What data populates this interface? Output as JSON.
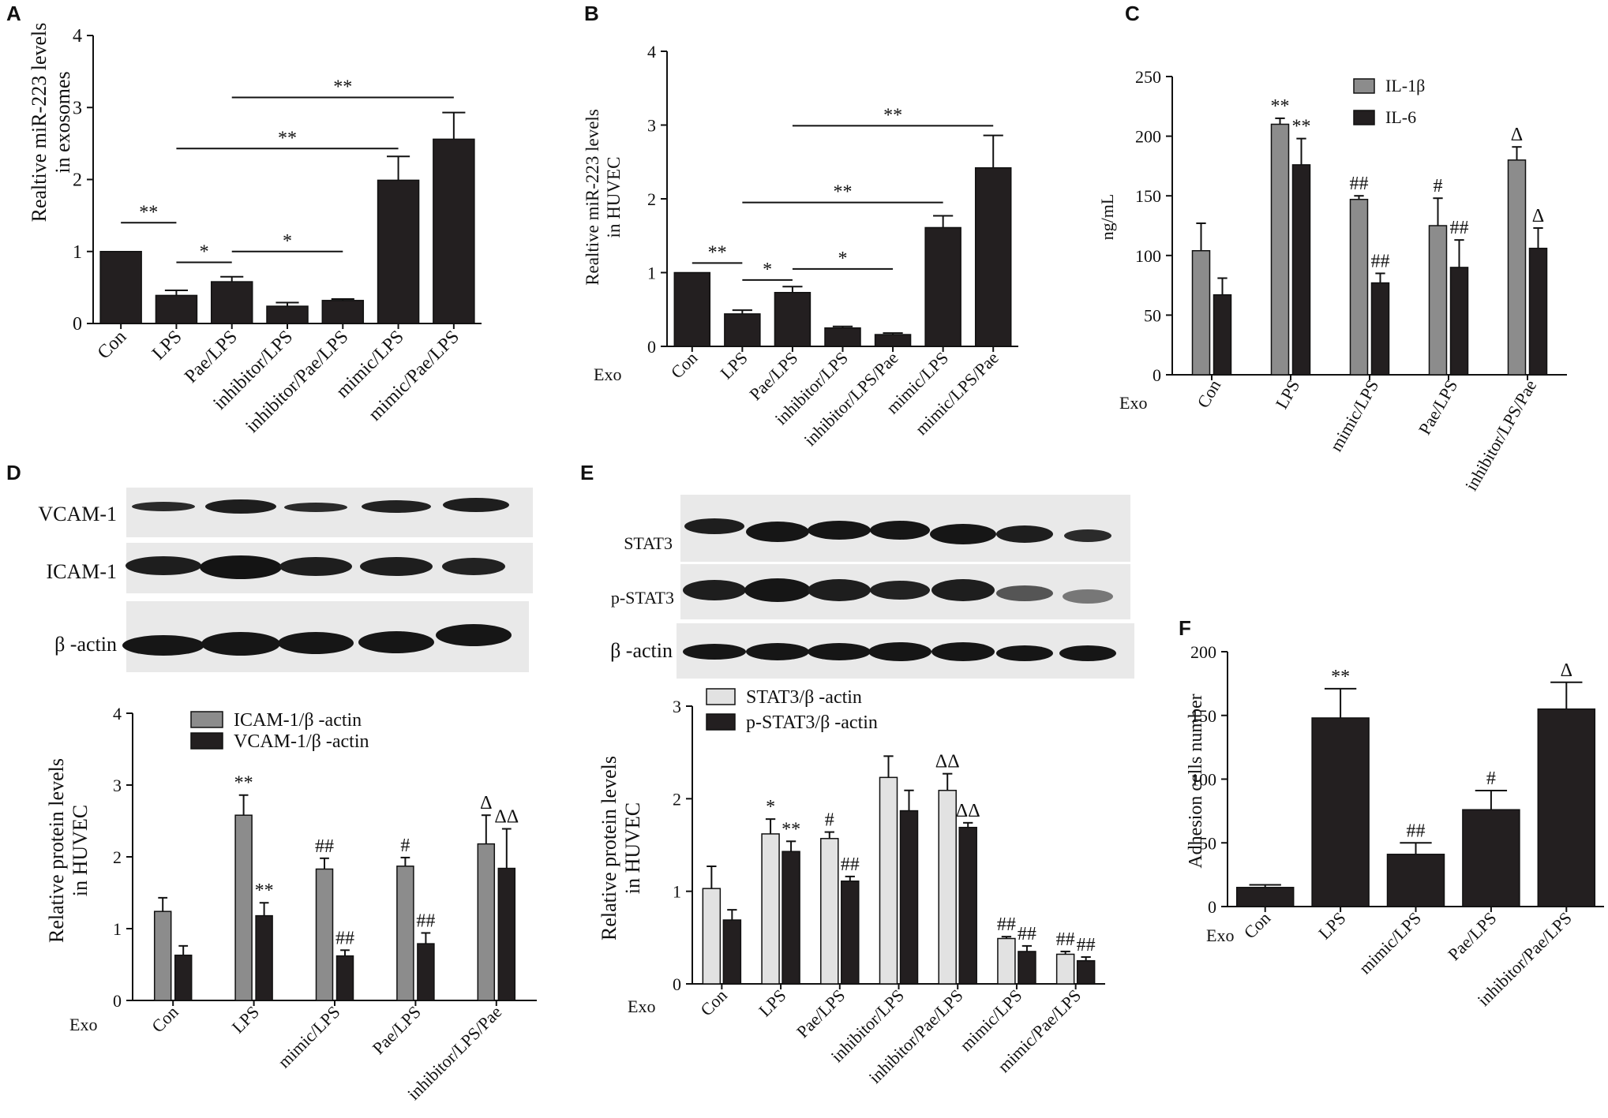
{
  "panels": {
    "A": "A",
    "B": "B",
    "C": "C",
    "D": "D",
    "E": "E",
    "F": "F"
  },
  "exo_label": "Exo",
  "blots": {
    "D": {
      "rows": [
        "VCAM-1",
        "ICAM-1",
        "β -actin"
      ]
    },
    "E": {
      "rows": [
        "STAT3",
        "p-STAT3",
        "β -actin"
      ]
    }
  },
  "colors": {
    "dark": "#231f20",
    "gray": "#8c8c8c",
    "light": "#e2e2e2"
  },
  "chart_data": [
    {
      "panel": "A",
      "type": "bar",
      "ylabel": [
        "Realtive miR-223 levels",
        "in exosomes"
      ],
      "ylim": [
        0,
        4
      ],
      "yticks": [
        "0",
        "1",
        "2",
        "3",
        "4"
      ],
      "categories": [
        "Con",
        "LPS",
        "Pae/LPS",
        "inhibitor/LPS",
        "inhibitor/Pae/LPS",
        "mimic/LPS",
        "mimic/Pae/LPS"
      ],
      "series": [
        {
          "values": [
            1.0,
            0.39,
            0.58,
            0.24,
            0.32,
            1.99,
            2.56
          ],
          "errors": [
            0,
            0.07,
            0.07,
            0.05,
            0.02,
            0.33,
            0.37
          ],
          "color": "dark"
        }
      ],
      "brackets": [
        {
          "from": 0,
          "to": 1,
          "y": 1.4,
          "label": "**"
        },
        {
          "from": 1,
          "to": 2,
          "y": 0.85,
          "label": "*"
        },
        {
          "from": 2,
          "to": 4,
          "y": 1.0,
          "label": "*"
        },
        {
          "from": 1,
          "to": 5,
          "y": 2.43,
          "label": "**"
        },
        {
          "from": 2,
          "to": 6,
          "y": 3.14,
          "label": "**"
        }
      ]
    },
    {
      "panel": "B",
      "type": "bar",
      "ylabel": [
        "Realtive miR-223 levels",
        "in HUVEC"
      ],
      "ylim": [
        0,
        4
      ],
      "yticks": [
        "0",
        "1",
        "2",
        "3",
        "4"
      ],
      "categories": [
        "Con",
        "LPS",
        "Pae/LPS",
        "inhibitor/LPS",
        "inhibitor/LPS/Pae",
        "mimic/LPS",
        "mimic/LPS/Pae"
      ],
      "series": [
        {
          "values": [
            1.0,
            0.44,
            0.73,
            0.25,
            0.16,
            1.61,
            2.42
          ],
          "errors": [
            0,
            0.05,
            0.08,
            0.02,
            0.02,
            0.16,
            0.44
          ],
          "color": "dark"
        }
      ],
      "brackets": [
        {
          "from": 0,
          "to": 1,
          "y": 1.13,
          "label": "**"
        },
        {
          "from": 1,
          "to": 2,
          "y": 0.9,
          "label": "*"
        },
        {
          "from": 2,
          "to": 4,
          "y": 1.05,
          "label": "*"
        },
        {
          "from": 1,
          "to": 5,
          "y": 1.95,
          "label": "**"
        },
        {
          "from": 2,
          "to": 6,
          "y": 2.99,
          "label": "**"
        }
      ]
    },
    {
      "panel": "C",
      "type": "bar",
      "ylabel": [
        "ng/mL"
      ],
      "ylim": [
        0,
        250
      ],
      "yticks": [
        "0",
        "50",
        "100",
        "150",
        "200",
        "250"
      ],
      "categories": [
        "Con",
        "LPS",
        "mimic/LPS",
        "Pae/LPS",
        "inhibitor/LPS/Pae"
      ],
      "legend": [
        "IL-1β",
        "IL-6"
      ],
      "series": [
        {
          "name": "IL-1β",
          "values": [
            104,
            210,
            147,
            125,
            180
          ],
          "errors": [
            23,
            5,
            3,
            23,
            11
          ],
          "color": "gray",
          "annotations": [
            "",
            "**",
            "##",
            "#",
            "Δ"
          ]
        },
        {
          "name": "IL-6",
          "values": [
            67,
            176,
            77,
            90,
            106
          ],
          "errors": [
            14,
            22,
            8,
            23,
            17
          ],
          "color": "dark",
          "annotations": [
            "",
            "**",
            "##",
            "##",
            "Δ"
          ]
        }
      ]
    },
    {
      "panel": "D",
      "type": "bar",
      "ylabel": [
        "Relative protein levels",
        "in HUVEC"
      ],
      "ylim": [
        0,
        4
      ],
      "yticks": [
        "0",
        "1",
        "2",
        "3",
        "4"
      ],
      "categories": [
        "Con",
        "LPS",
        "mimic/LPS",
        "Pae/LPS",
        "inhibitor/LPS/Pae"
      ],
      "legend": [
        "ICAM-1/β -actin",
        "VCAM-1/β -actin"
      ],
      "series": [
        {
          "name": "ICAM-1/β -actin",
          "values": [
            1.24,
            2.58,
            1.83,
            1.87,
            2.18
          ],
          "errors": [
            0.19,
            0.28,
            0.15,
            0.12,
            0.4
          ],
          "color": "gray",
          "annotations": [
            "",
            "**",
            "##",
            "#",
            "Δ"
          ]
        },
        {
          "name": "VCAM-1/β -actin",
          "values": [
            0.63,
            1.18,
            0.62,
            0.79,
            1.84
          ],
          "errors": [
            0.13,
            0.18,
            0.08,
            0.15,
            0.55
          ],
          "color": "dark",
          "annotations": [
            "",
            "**",
            "##",
            "##",
            "ΔΔ"
          ]
        }
      ]
    },
    {
      "panel": "E",
      "type": "bar",
      "ylabel": [
        "Relative protein levels",
        "in HUVEC"
      ],
      "ylim": [
        0,
        3
      ],
      "yticks": [
        "0",
        "1",
        "2",
        "3"
      ],
      "categories": [
        "Con",
        "LPS",
        "Pae/LPS",
        "inhibitor/LPS",
        "inhibitor/Pae/LPS",
        "mimic/LPS",
        "mimic/Pae/LPS"
      ],
      "legend": [
        "STAT3/β -actin",
        "p-STAT3/β -actin"
      ],
      "series": [
        {
          "name": "STAT3/β -actin",
          "values": [
            1.03,
            1.62,
            1.57,
            2.23,
            2.09,
            0.49,
            0.32
          ],
          "errors": [
            0.24,
            0.16,
            0.07,
            0.23,
            0.18,
            0.02,
            0.03
          ],
          "color": "light",
          "annotations": [
            "",
            "*",
            "#",
            "",
            "ΔΔ",
            "##",
            "##"
          ]
        },
        {
          "name": "p-STAT3/β -actin",
          "values": [
            0.69,
            1.43,
            1.11,
            1.87,
            1.69,
            0.35,
            0.25
          ],
          "errors": [
            0.11,
            0.11,
            0.05,
            0.22,
            0.05,
            0.06,
            0.04
          ],
          "color": "dark",
          "annotations": [
            "",
            "**",
            "##",
            "",
            "ΔΔ",
            "##",
            "##"
          ]
        }
      ]
    },
    {
      "panel": "F",
      "type": "bar",
      "ylabel": [
        "Adhesion cells number"
      ],
      "ylim": [
        0,
        200
      ],
      "yticks": [
        "0",
        "50",
        "100",
        "150",
        "200"
      ],
      "categories": [
        "Con",
        "LPS",
        "mimic/LPS",
        "Pae/LPS",
        "inhibitor/Pae/LPS"
      ],
      "series": [
        {
          "values": [
            15,
            148,
            41,
            76,
            155
          ],
          "errors": [
            2,
            23,
            9,
            15,
            21
          ],
          "color": "dark",
          "annotations": [
            "",
            "**",
            "##",
            "#",
            "Δ"
          ]
        }
      ]
    }
  ]
}
